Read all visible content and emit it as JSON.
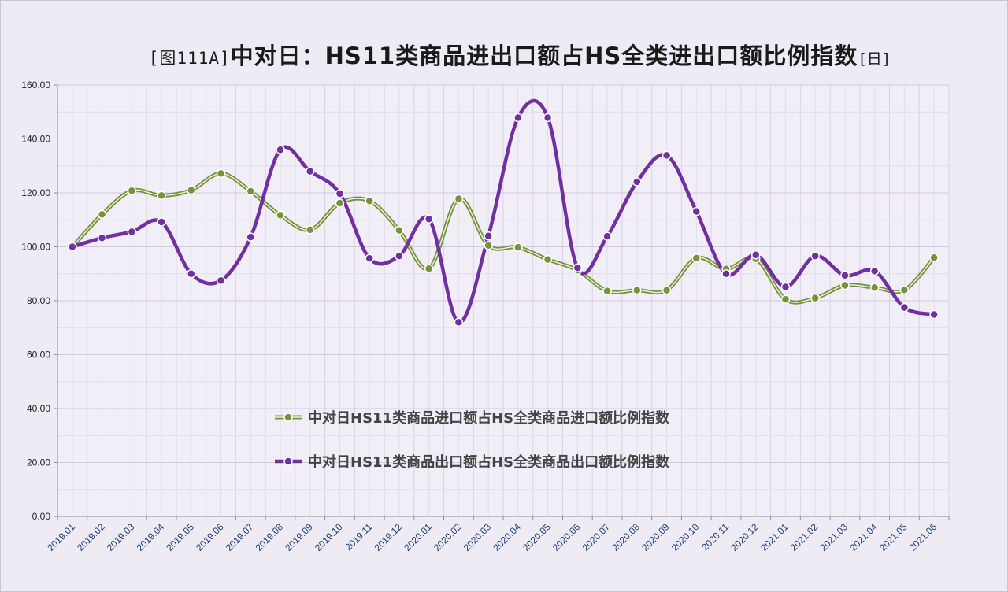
{
  "title": {
    "prefix": "[图111A]",
    "main": "中对日：HS11类商品进出口额占HS全类进出口额比例指数",
    "suffix": "[日]"
  },
  "chart_data": {
    "type": "line",
    "title": "[图111A]中对日：HS11类商品进出口额占HS全类进出口额比例指数[日]",
    "categories": [
      "2019.01",
      "2019.02",
      "2019.03",
      "2019.04",
      "2019.05",
      "2019.06",
      "2019.07",
      "2019.08",
      "2019.09",
      "2019.10",
      "2019.11",
      "2019.12",
      "2020.01",
      "2020.02",
      "2020.03",
      "2020.04",
      "2020.05",
      "2020.06",
      "2020.07",
      "2020.08",
      "2020.09",
      "2020.10",
      "2020.11",
      "2020.12",
      "2021.01",
      "2021.02",
      "2021.03",
      "2021.04",
      "2021.05",
      "2021.06"
    ],
    "ylim": [
      0,
      160
    ],
    "yticks": [
      "0.00",
      "20.00",
      "40.00",
      "60.00",
      "80.00",
      "100.00",
      "120.00",
      "140.00",
      "160.00"
    ],
    "grid": true,
    "legend_position": "center",
    "series": [
      {
        "name": "中对日HS11类商品进口额占HS全类商品进口额比例指数",
        "color": "#76923c",
        "values": [
          100,
          112,
          120.8,
          119,
          121,
          127.2,
          120.6,
          111.7,
          106.3,
          116.2,
          117,
          106.1,
          91.9,
          117.8,
          100.5,
          99.8,
          95.3,
          91.3,
          83.6,
          83.9,
          83.9,
          95.8,
          91.8,
          95.6,
          80.5,
          81,
          85.7,
          84.9,
          84,
          96
        ]
      },
      {
        "name": "中对日HS11类商品出口额占HS全类商品出口额比例指数",
        "color": "#7030a0",
        "values": [
          100,
          103.3,
          105.6,
          109.2,
          90,
          87.5,
          103.6,
          136,
          128,
          119.7,
          95.7,
          96.6,
          110.3,
          72,
          104,
          147.9,
          147.9,
          92.2,
          103.9,
          124.1,
          133.9,
          113.1,
          90,
          97,
          85.1,
          96.6,
          89.4,
          91,
          77.5,
          74.9
        ]
      }
    ]
  }
}
